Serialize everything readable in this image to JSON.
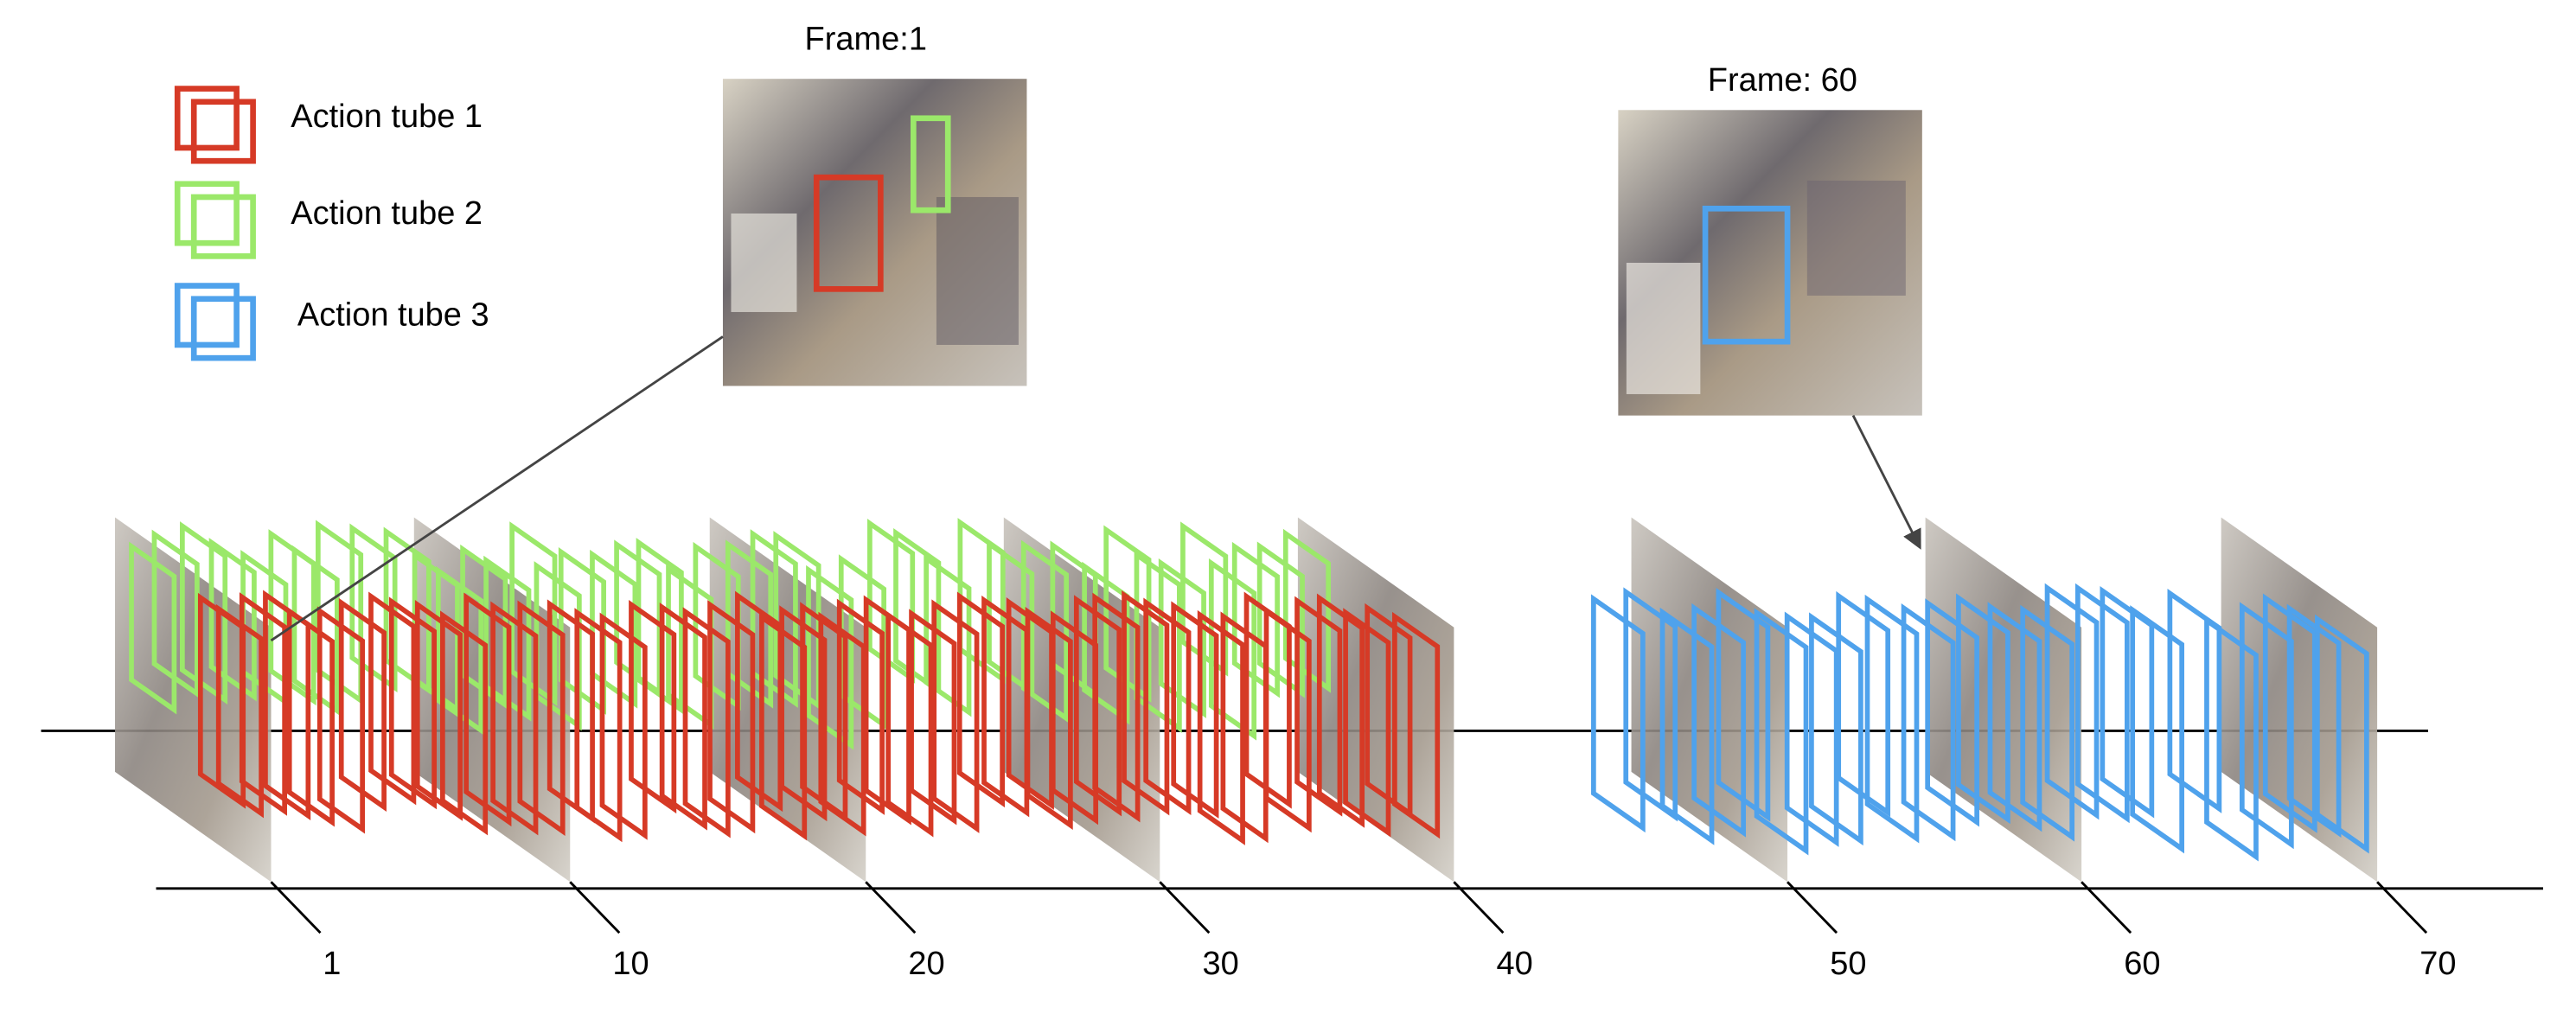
{
  "legend": [
    {
      "label": "Action tube 1"
    },
    {
      "label": "Action tube 2"
    },
    {
      "label": "Action tube 3"
    }
  ],
  "frames": [
    {
      "label": "Frame:1"
    },
    {
      "label": "Frame: 60"
    }
  ],
  "timeline": {
    "ticks": [
      1,
      10,
      20,
      30,
      40,
      50,
      60,
      70
    ]
  }
}
